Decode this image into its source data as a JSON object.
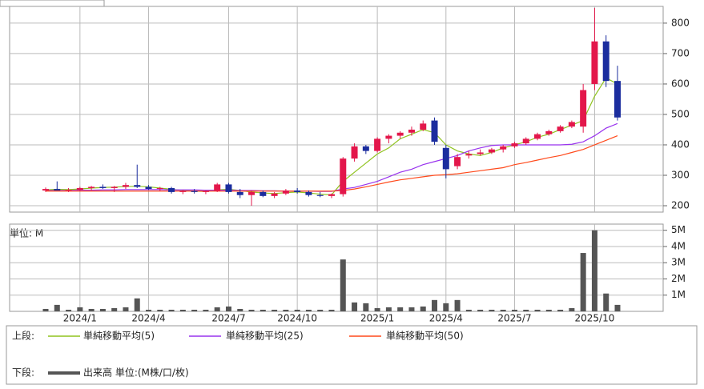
{
  "chart_data": [
    {
      "type": "candlestick",
      "legend_label": "上段:",
      "up_color": "#e3174b",
      "down_color": "#1b2d9e",
      "ohlc": [
        [
          250,
          260,
          245,
          255
        ],
        [
          255,
          280,
          250,
          250
        ],
        [
          250,
          258,
          245,
          252
        ],
        [
          252,
          262,
          248,
          258
        ],
        [
          258,
          265,
          250,
          262
        ],
        [
          262,
          270,
          255,
          258
        ],
        [
          258,
          265,
          245,
          262
        ],
        [
          262,
          275,
          255,
          268
        ],
        [
          268,
          335,
          258,
          262
        ],
        [
          262,
          268,
          252,
          255
        ],
        [
          255,
          262,
          248,
          258
        ],
        [
          258,
          262,
          240,
          245
        ],
        [
          245,
          252,
          238,
          248
        ],
        [
          248,
          255,
          240,
          245
        ],
        [
          245,
          250,
          238,
          248
        ],
        [
          248,
          275,
          245,
          270
        ],
        [
          270,
          275,
          240,
          245
        ],
        [
          245,
          255,
          225,
          235
        ],
        [
          235,
          250,
          200,
          245
        ],
        [
          245,
          250,
          228,
          232
        ],
        [
          232,
          245,
          225,
          240
        ],
        [
          240,
          255,
          235,
          250
        ],
        [
          250,
          258,
          240,
          245
        ],
        [
          245,
          250,
          230,
          235
        ],
        [
          235,
          245,
          228,
          232
        ],
        [
          232,
          240,
          225,
          238
        ],
        [
          238,
          360,
          230,
          355
        ],
        [
          355,
          405,
          345,
          395
        ],
        [
          395,
          400,
          370,
          380
        ],
        [
          380,
          425,
          375,
          420
        ],
        [
          420,
          435,
          405,
          430
        ],
        [
          430,
          445,
          420,
          440
        ],
        [
          440,
          460,
          430,
          450
        ],
        [
          450,
          480,
          445,
          470
        ],
        [
          480,
          490,
          400,
          410
        ],
        [
          390,
          400,
          290,
          320
        ],
        [
          330,
          370,
          320,
          360
        ],
        [
          365,
          380,
          355,
          370
        ],
        [
          370,
          385,
          365,
          375
        ],
        [
          375,
          390,
          370,
          385
        ],
        [
          385,
          400,
          375,
          395
        ],
        [
          395,
          410,
          390,
          405
        ],
        [
          405,
          425,
          400,
          420
        ],
        [
          420,
          440,
          415,
          435
        ],
        [
          435,
          450,
          430,
          445
        ],
        [
          445,
          465,
          440,
          460
        ],
        [
          460,
          480,
          455,
          475
        ],
        [
          460,
          600,
          440,
          580
        ],
        [
          600,
          850,
          580,
          740
        ],
        [
          740,
          760,
          590,
          610
        ],
        [
          610,
          660,
          480,
          490
        ]
      ],
      "series": [
        {
          "name": "単純移動平均(5)",
          "color": "#8fc31f",
          "values": [
            252,
            254,
            253,
            255,
            258,
            260,
            261,
            263,
            264,
            262,
            258,
            254,
            250,
            248,
            247,
            252,
            254,
            250,
            245,
            242,
            240,
            243,
            245,
            242,
            238,
            236,
            280,
            310,
            340,
            370,
            390,
            420,
            435,
            450,
            440,
            400,
            380,
            370,
            365,
            375,
            390,
            400,
            410,
            425,
            435,
            450,
            465,
            480,
            560,
            620,
            600
          ]
        },
        {
          "name": "単純移動平均(25)",
          "color": "#9933ee",
          "values": [
            250,
            250,
            250,
            251,
            251,
            252,
            252,
            253,
            253,
            253,
            253,
            252,
            252,
            252,
            251,
            251,
            251,
            250,
            250,
            249,
            249,
            248,
            248,
            248,
            247,
            247,
            255,
            260,
            270,
            280,
            295,
            310,
            320,
            335,
            345,
            355,
            365,
            380,
            390,
            398,
            400,
            400,
            400,
            400,
            400,
            400,
            402,
            410,
            430,
            455,
            470
          ]
        },
        {
          "name": "単純移動平均(50)",
          "color": "#ff4a1c",
          "values": [
            248,
            248,
            248,
            248,
            248,
            248,
            248,
            248,
            248,
            248,
            248,
            248,
            248,
            248,
            248,
            248,
            248,
            248,
            248,
            248,
            248,
            248,
            248,
            248,
            248,
            248,
            250,
            255,
            262,
            270,
            278,
            285,
            290,
            295,
            300,
            302,
            305,
            310,
            315,
            320,
            325,
            335,
            342,
            350,
            358,
            365,
            375,
            385,
            400,
            415,
            430
          ]
        }
      ],
      "ylim": [
        179,
        855
      ],
      "yticks": [
        200,
        300,
        400,
        500,
        600,
        700,
        800
      ],
      "grid": true
    },
    {
      "type": "bar",
      "legend_label": "下段:",
      "unit_label": "単位: M",
      "categories": [
        null,
        null,
        null,
        "2024/1",
        null,
        null,
        null,
        null,
        null,
        "2024/4",
        null,
        null,
        null,
        null,
        null,
        null,
        "2024/7",
        null,
        null,
        null,
        null,
        null,
        "2024/10",
        null,
        null,
        null,
        null,
        null,
        null,
        "2025/1",
        null,
        null,
        null,
        null,
        null,
        "2025/4",
        null,
        null,
        null,
        null,
        null,
        "2025/7",
        null,
        null,
        null,
        null,
        null,
        null,
        "2025/10",
        null,
        null
      ],
      "series": [
        {
          "name": "出来高 単位:(M株/口/枚)",
          "color": "#555555",
          "values": [
            0.15,
            0.4,
            0.1,
            0.25,
            0.15,
            0.15,
            0.2,
            0.25,
            0.8,
            0.1,
            0.1,
            0.1,
            0.1,
            0.1,
            0.1,
            0.25,
            0.3,
            0.15,
            0.1,
            0.1,
            0.1,
            0.1,
            0.1,
            0.1,
            0.1,
            0.1,
            3.2,
            0.55,
            0.5,
            0.2,
            0.25,
            0.25,
            0.25,
            0.3,
            0.7,
            0.5,
            0.7,
            0.1,
            0.1,
            0.1,
            0.1,
            0.1,
            0.1,
            0.1,
            0.1,
            0.1,
            0.2,
            3.6,
            5.0,
            1.1,
            0.4
          ]
        }
      ],
      "ylim": [
        0,
        5.38
      ],
      "yticks": [
        {
          "value": 1,
          "label": "1M"
        },
        {
          "value": 2,
          "label": "2M"
        },
        {
          "value": 3,
          "label": "3M"
        },
        {
          "value": 4,
          "label": "4M"
        },
        {
          "value": 5,
          "label": "5M"
        }
      ],
      "grid": true
    }
  ]
}
